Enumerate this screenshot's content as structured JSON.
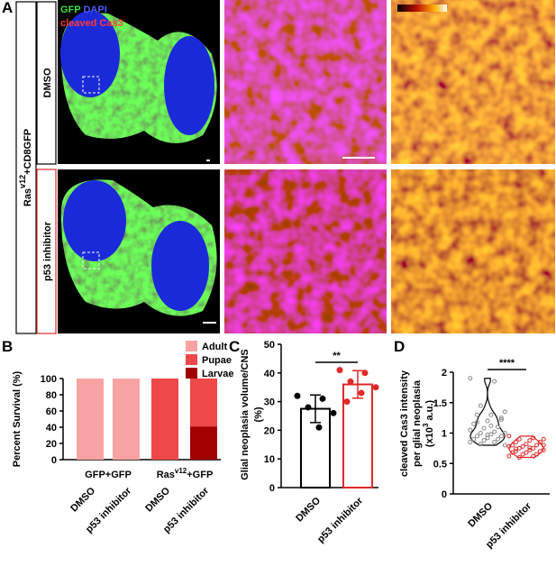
{
  "figure": {
    "panel_labels": [
      "A",
      "B",
      "C",
      "D"
    ],
    "stains": {
      "gfp": "GFP",
      "dapi": "DAPI",
      "cas3": "cleaved Cas3"
    },
    "genotype": {
      "text": "Ras",
      "sup": "v12",
      "after": "+CD8GFP"
    },
    "conditions": [
      "DMSO",
      "p53 inhibitor"
    ]
  },
  "chart_data": [
    {
      "type": "stacked_bar",
      "ylabel": "Percent Survival (%)",
      "categories": [
        "DMSO",
        "p53 inhibitor",
        "DMSO",
        "p53 inhibitor"
      ],
      "group_labels": [
        {
          "text": "GFP+GFP"
        },
        {
          "text": "Ras",
          "sup": "v12",
          "after": "+GFP"
        }
      ],
      "series": [
        {
          "name": "Adult",
          "color": "#f8a3a3",
          "values": [
            100,
            100,
            0,
            0
          ]
        },
        {
          "name": "Pupae",
          "color": "#ef4848",
          "values": [
            0,
            0,
            100,
            59
          ]
        },
        {
          "name": "Larvae",
          "color": "#a30000",
          "values": [
            0,
            0,
            0,
            41
          ]
        }
      ],
      "ylim": [
        0,
        100
      ],
      "yticks": [
        0,
        20,
        40,
        60,
        80,
        100
      ]
    },
    {
      "type": "bar_dot",
      "ylabel": [
        "Glial neoplasia volume/CNS",
        "(%)"
      ],
      "categories": [
        "DMSO",
        "p53 inhibitor"
      ],
      "colors": [
        "#000000",
        "#e02828"
      ],
      "values": [
        27.5,
        36
      ],
      "errors": [
        4.8,
        4.8
      ],
      "points": [
        [
          32,
          31,
          28,
          26,
          21
        ],
        [
          41,
          40,
          37,
          35,
          33,
          30
        ]
      ],
      "significance": "**",
      "ylim": [
        0,
        50
      ],
      "yticks": [
        0,
        10,
        20,
        30,
        40,
        50
      ]
    },
    {
      "type": "violin",
      "ylabel": [
        "cleaved Cas3 intensity",
        "per glial neoplasia",
        {
          "text": "(x10",
          "sup": "3",
          "after": " a.u.)"
        }
      ],
      "categories": [
        "DMSO",
        "p53 inhibitor"
      ],
      "colors": [
        "#000000",
        "#e02828"
      ],
      "points": [
        [
          1.9,
          1.85,
          1.45,
          1.35,
          1.3,
          1.3,
          1.25,
          1.2,
          1.15,
          1.1,
          1.08,
          1.05,
          1.02,
          1.0,
          1.0,
          0.98,
          0.95,
          0.95,
          0.92,
          0.9,
          0.9,
          0.88,
          0.85,
          0.85,
          0.82,
          0.8,
          1.12,
          1.18,
          1.22,
          0.97
        ],
        [
          0.95,
          0.92,
          0.9,
          0.9,
          0.88,
          0.85,
          0.85,
          0.82,
          0.8,
          0.8,
          0.78,
          0.78,
          0.75,
          0.75,
          0.72,
          0.72,
          0.7,
          0.7,
          0.68,
          0.68,
          0.65,
          0.65,
          0.62,
          0.62,
          0.6,
          0.8,
          0.76,
          0.74
        ]
      ],
      "significance": "****",
      "ylim": [
        0,
        2
      ],
      "yticks": [
        0,
        0.5,
        1,
        1.5,
        2
      ]
    }
  ]
}
